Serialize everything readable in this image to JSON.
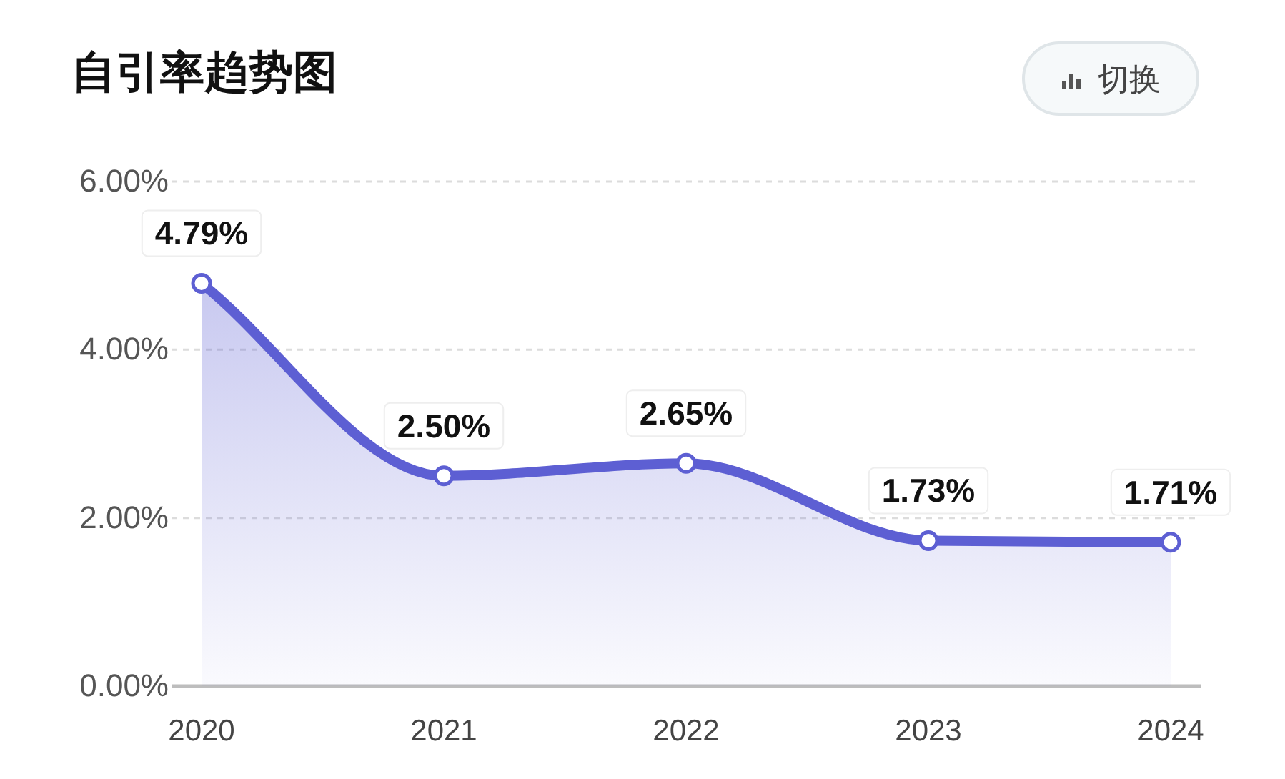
{
  "chart_data": {
    "type": "area",
    "title": "自引率趋势图",
    "categories": [
      "2020",
      "2021",
      "2022",
      "2023",
      "2024"
    ],
    "values": [
      4.79,
      2.5,
      2.65,
      1.73,
      1.71
    ],
    "color": "#5d5fd3",
    "value_labels": [
      "4.79%",
      "2.50%",
      "2.65%",
      "1.73%",
      "1.71%"
    ],
    "ylim": [
      0,
      6
    ],
    "yticks": [
      {
        "value": 0,
        "label": "0.00%"
      },
      {
        "value": 2,
        "label": "2.00%"
      },
      {
        "value": 4,
        "label": "4.00%"
      },
      {
        "value": 6,
        "label": "6.00%"
      }
    ],
    "grid": "y",
    "marker": "circle",
    "annotations": [
      "切换"
    ]
  }
}
